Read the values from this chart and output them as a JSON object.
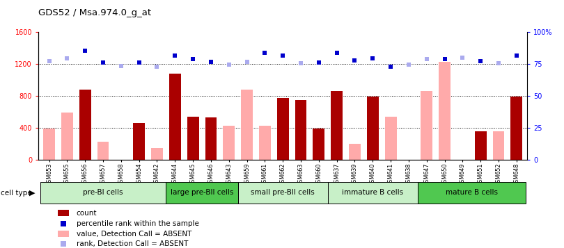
{
  "title": "GDS52 / Msa.974.0_g_at",
  "samples": [
    "GSM653",
    "GSM655",
    "GSM656",
    "GSM657",
    "GSM658",
    "GSM654",
    "GSM642",
    "GSM644",
    "GSM645",
    "GSM646",
    "GSM643",
    "GSM659",
    "GSM661",
    "GSM662",
    "GSM663",
    "GSM660",
    "GSM637",
    "GSM639",
    "GSM640",
    "GSM641",
    "GSM638",
    "GSM647",
    "GSM650",
    "GSM649",
    "GSM651",
    "GSM652",
    "GSM648"
  ],
  "count": [
    null,
    null,
    880,
    null,
    null,
    460,
    null,
    1080,
    540,
    530,
    null,
    null,
    null,
    780,
    750,
    390,
    860,
    null,
    790,
    null,
    null,
    null,
    null,
    null,
    355,
    null,
    795
  ],
  "value_absent": [
    390,
    590,
    null,
    230,
    null,
    null,
    150,
    null,
    null,
    null,
    430,
    880,
    430,
    null,
    null,
    null,
    null,
    200,
    null,
    540,
    null,
    860,
    1230,
    null,
    null,
    360,
    null
  ],
  "percentile_rank": [
    null,
    null,
    1370,
    1220,
    null,
    1220,
    null,
    1310,
    1260,
    1230,
    null,
    null,
    1340,
    1310,
    null,
    1220,
    1340,
    1250,
    1270,
    1170,
    null,
    null,
    1260,
    null,
    1240,
    null,
    1310
  ],
  "rank_absent": [
    1240,
    1270,
    null,
    null,
    1180,
    null,
    1170,
    null,
    null,
    null,
    1195,
    1230,
    null,
    null,
    1210,
    null,
    null,
    null,
    null,
    null,
    1195,
    1265,
    null,
    1280,
    null,
    1210,
    null
  ],
  "cell_groups": [
    {
      "label": "pre-BI cells",
      "start": 0,
      "end": 7,
      "color": "#c8f0c8"
    },
    {
      "label": "large pre-BII cells",
      "start": 7,
      "end": 11,
      "color": "#50c850"
    },
    {
      "label": "small pre-BII cells",
      "start": 11,
      "end": 16,
      "color": "#c8f0c8"
    },
    {
      "label": "immature B cells",
      "start": 16,
      "end": 21,
      "color": "#c8f0c8"
    },
    {
      "label": "mature B cells",
      "start": 21,
      "end": 27,
      "color": "#50c850"
    }
  ],
  "ylim_left": [
    0,
    1600
  ],
  "yticks_left": [
    0,
    400,
    800,
    1200,
    1600
  ],
  "ytick_labels_right": [
    "0",
    "25",
    "50",
    "75",
    "100%"
  ],
  "bar_color_dark_red": "#aa0000",
  "bar_color_pink": "#ffaaaa",
  "dot_color_dark_blue": "#0000cc",
  "dot_color_light_blue": "#aaaaee",
  "legend_items": [
    {
      "color": "#aa0000",
      "type": "rect",
      "label": "count"
    },
    {
      "color": "#0000cc",
      "type": "square",
      "label": "percentile rank within the sample"
    },
    {
      "color": "#ffaaaa",
      "type": "rect",
      "label": "value, Detection Call = ABSENT"
    },
    {
      "color": "#aaaaee",
      "type": "square",
      "label": "rank, Detection Call = ABSENT"
    }
  ]
}
